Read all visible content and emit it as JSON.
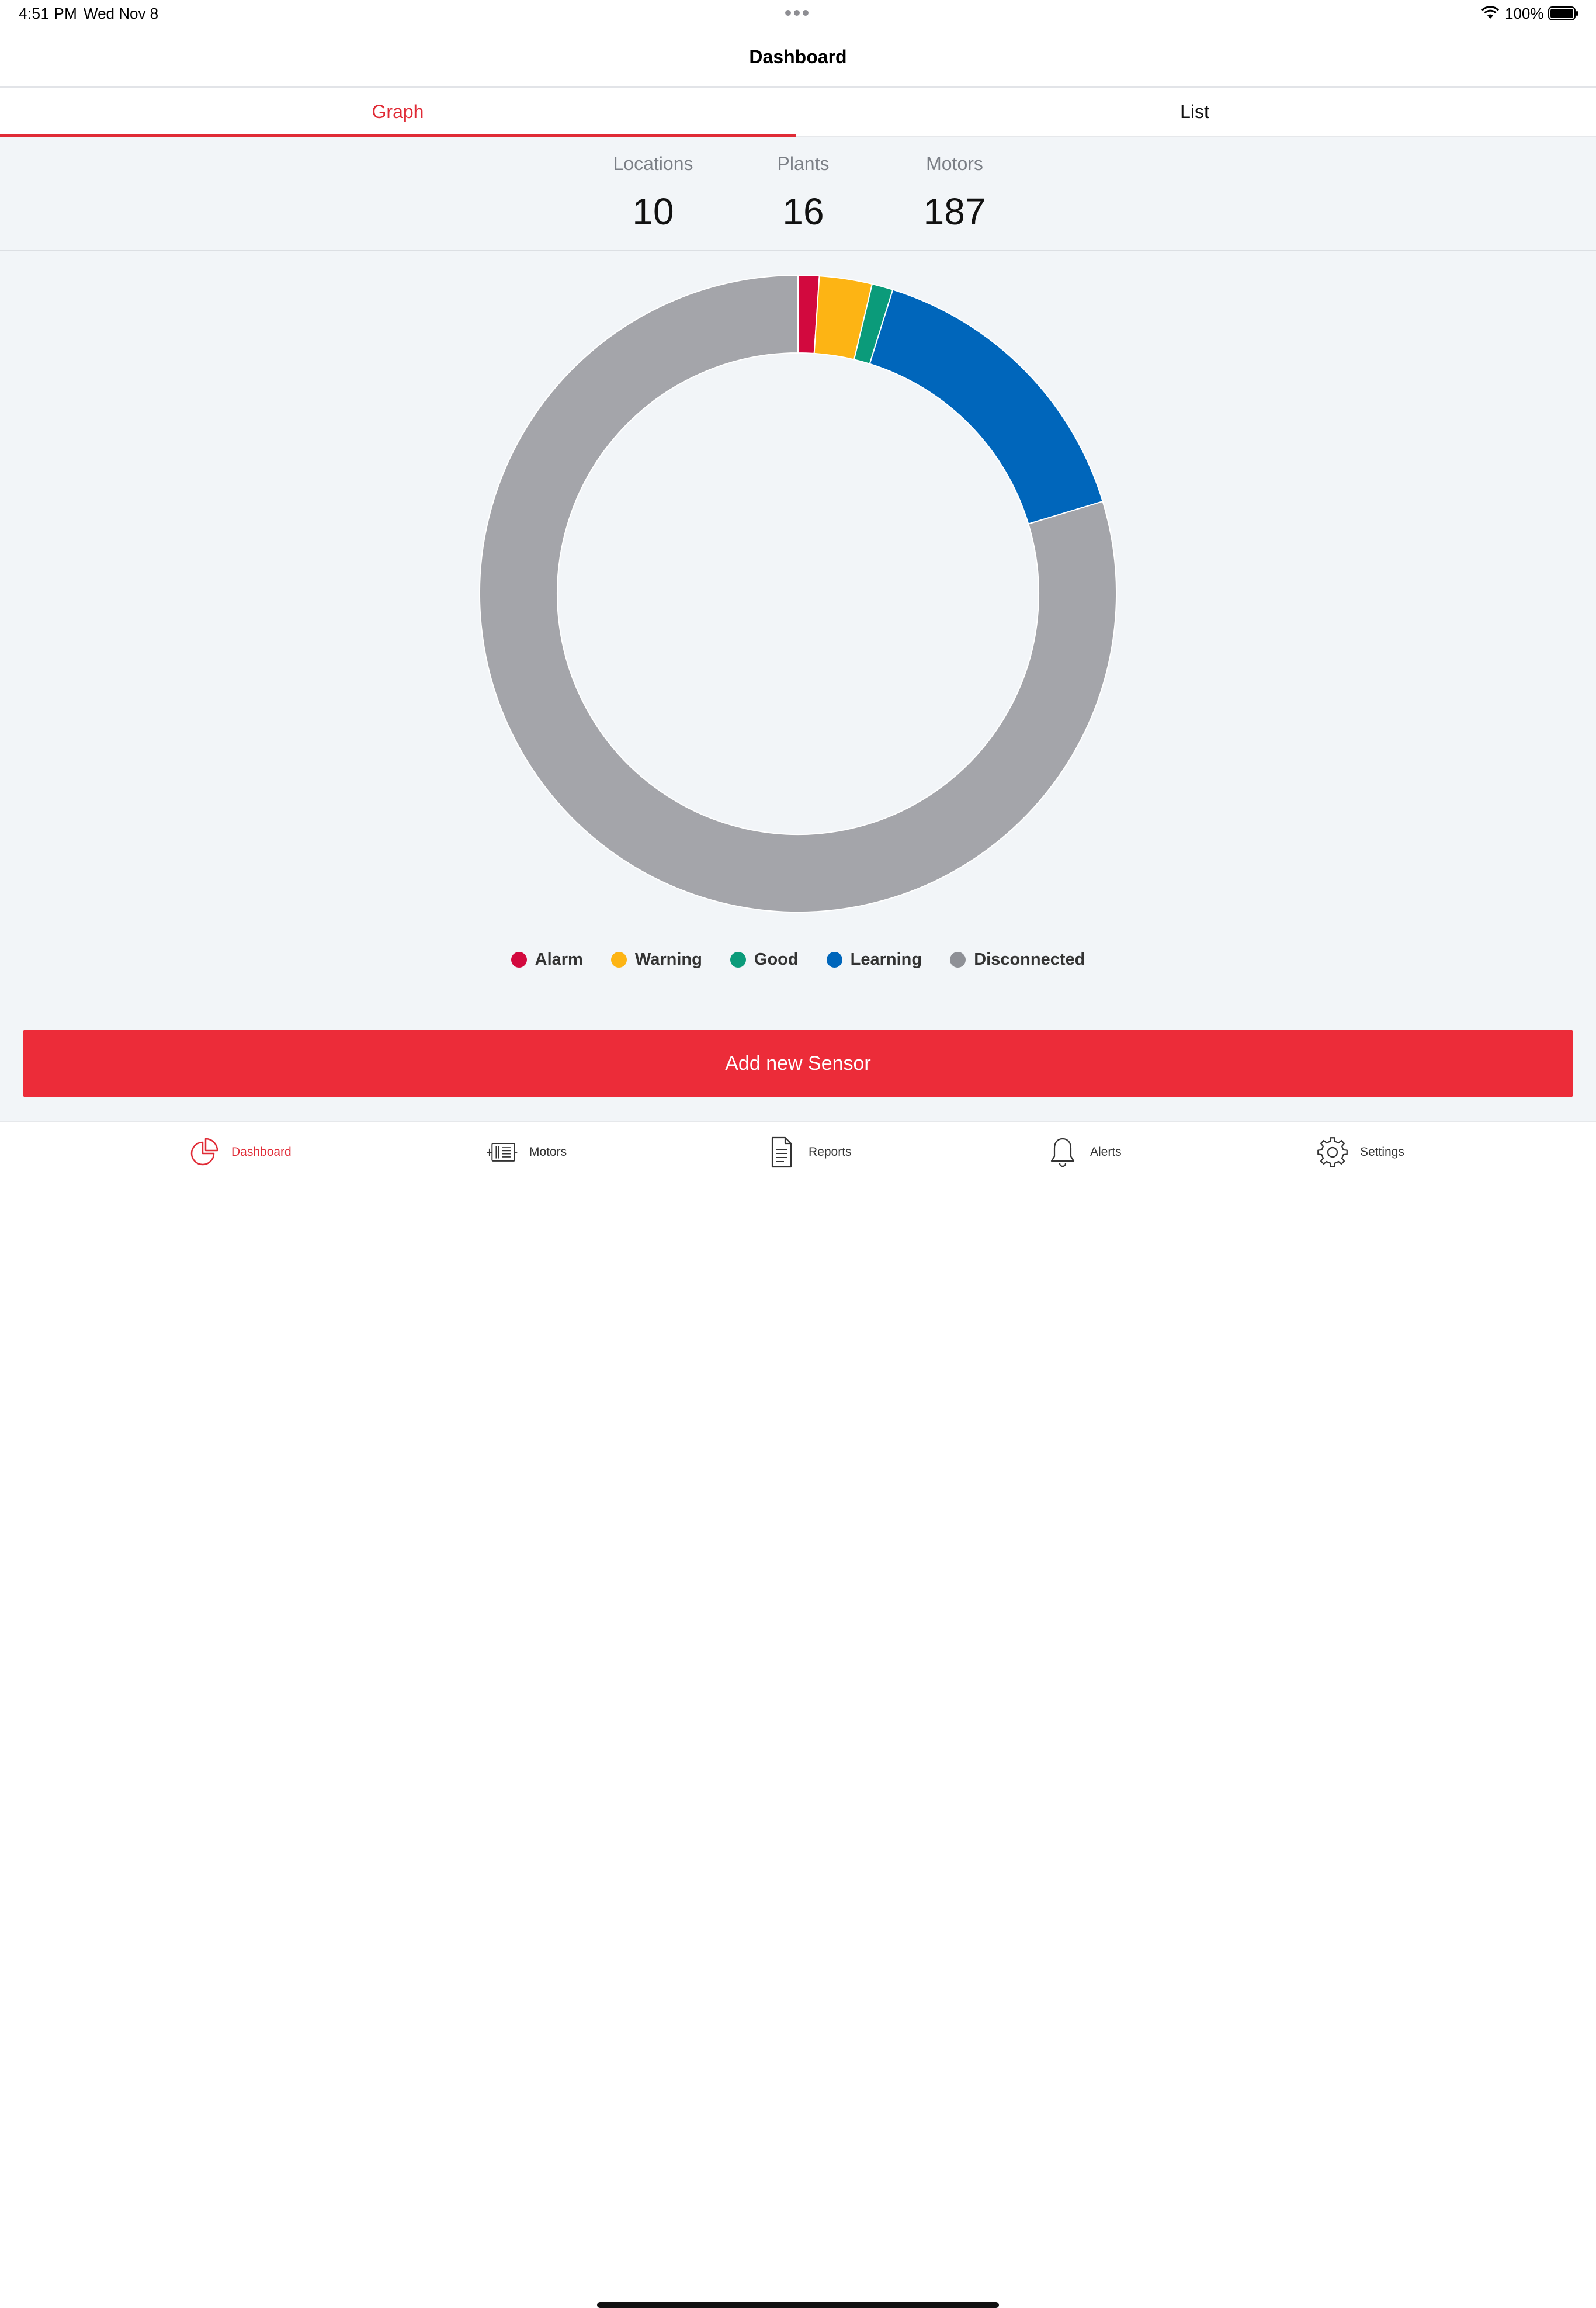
{
  "status_bar": {
    "time": "4:51 PM",
    "date": "Wed Nov 8",
    "battery": "100%"
  },
  "nav": {
    "title": "Dashboard"
  },
  "tabs": [
    {
      "label": "Graph",
      "selected": true
    },
    {
      "label": "List",
      "selected": false
    }
  ],
  "stats": {
    "locations": {
      "label": "Locations",
      "value": "10"
    },
    "plants": {
      "label": "Plants",
      "value": "16"
    },
    "motors": {
      "label": "Motors",
      "value": "187"
    }
  },
  "chart_data": {
    "type": "pie",
    "categories": [
      "Alarm",
      "Warning",
      "Good",
      "Learning",
      "Disconnected"
    ],
    "values": [
      2,
      5,
      2,
      29,
      149
    ],
    "colors": [
      "#d2093e",
      "#fdb414",
      "#0b9b7a",
      "#0066bb",
      "#a4a5aa"
    ],
    "donut": true,
    "legend": "bottom"
  },
  "legend": [
    {
      "label": "Alarm",
      "color": "#d2093e"
    },
    {
      "label": "Warning",
      "color": "#fdb414"
    },
    {
      "label": "Good",
      "color": "#0b9b7a"
    },
    {
      "label": "Learning",
      "color": "#0066bb"
    },
    {
      "label": "Disconnected",
      "color": "#8e9096"
    }
  ],
  "actions": {
    "add_sensor_label": "Add new Sensor"
  },
  "bottom_tabs": [
    {
      "label": "Dashboard",
      "icon": "dashboard-pie-icon",
      "active": true
    },
    {
      "label": "Motors",
      "icon": "motor-icon",
      "active": false
    },
    {
      "label": "Reports",
      "icon": "document-icon",
      "active": false
    },
    {
      "label": "Alerts",
      "icon": "bell-icon",
      "active": false
    },
    {
      "label": "Settings",
      "icon": "gear-icon",
      "active": false
    }
  ],
  "accent_color": "#e02b36"
}
